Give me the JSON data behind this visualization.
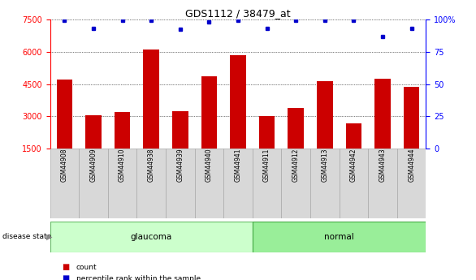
{
  "title": "GDS1112 / 38479_at",
  "samples": [
    "GSM44908",
    "GSM44909",
    "GSM44910",
    "GSM44938",
    "GSM44939",
    "GSM44940",
    "GSM44941",
    "GSM44911",
    "GSM44912",
    "GSM44913",
    "GSM44942",
    "GSM44943",
    "GSM44944"
  ],
  "counts": [
    4700,
    3050,
    3200,
    6100,
    3250,
    4850,
    5850,
    3020,
    3400,
    4650,
    2650,
    4750,
    4350
  ],
  "percentile_values": [
    7450,
    7100,
    7450,
    7450,
    7050,
    7400,
    7450,
    7100,
    7450,
    7450,
    7450,
    6700,
    7100
  ],
  "groups": [
    "glaucoma",
    "glaucoma",
    "glaucoma",
    "glaucoma",
    "glaucoma",
    "glaucoma",
    "glaucoma",
    "normal",
    "normal",
    "normal",
    "normal",
    "normal",
    "normal"
  ],
  "glaucoma_color": "#ccffcc",
  "normal_color": "#99ee99",
  "bar_color": "#cc0000",
  "dot_color": "#0000cc",
  "ylim_left": [
    1500,
    7500
  ],
  "ylim_right": [
    0,
    100
  ],
  "yticks_left": [
    1500,
    3000,
    4500,
    6000,
    7500
  ],
  "yticks_right": [
    0,
    25,
    50,
    75,
    100
  ],
  "grid_values": [
    3000,
    4500,
    6000,
    7500
  ],
  "background_color": "#ffffff"
}
